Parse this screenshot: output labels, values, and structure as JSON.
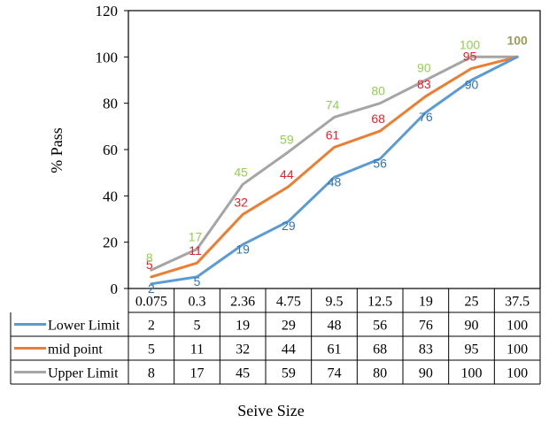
{
  "chart_data": {
    "type": "line",
    "ylabel": "% Pass",
    "xlabel": "Seive Size",
    "ylim": [
      0,
      120
    ],
    "yticks": [
      0,
      20,
      40,
      60,
      80,
      100,
      120
    ],
    "categories": [
      "0.075",
      "0.3",
      "2.36",
      "4.75",
      "9.5",
      "12.5",
      "19",
      "25",
      "37.5"
    ],
    "grid": false,
    "legend": "data-table",
    "series": [
      {
        "name": "Lower Limit",
        "color": "#5B9BD5",
        "label_color": "#2E75B6",
        "values": [
          2,
          5,
          19,
          29,
          48,
          56,
          76,
          90,
          100
        ]
      },
      {
        "name": "mid point",
        "color": "#ED7D31",
        "label_color": "#E8202A",
        "values": [
          5,
          11,
          32,
          44,
          61,
          68,
          83,
          95,
          100
        ]
      },
      {
        "name": "Upper Limit",
        "color": "#A5A5A5",
        "label_color": "#92D050",
        "values": [
          8,
          17,
          45,
          59,
          74,
          80,
          90,
          100,
          100
        ]
      }
    ]
  }
}
